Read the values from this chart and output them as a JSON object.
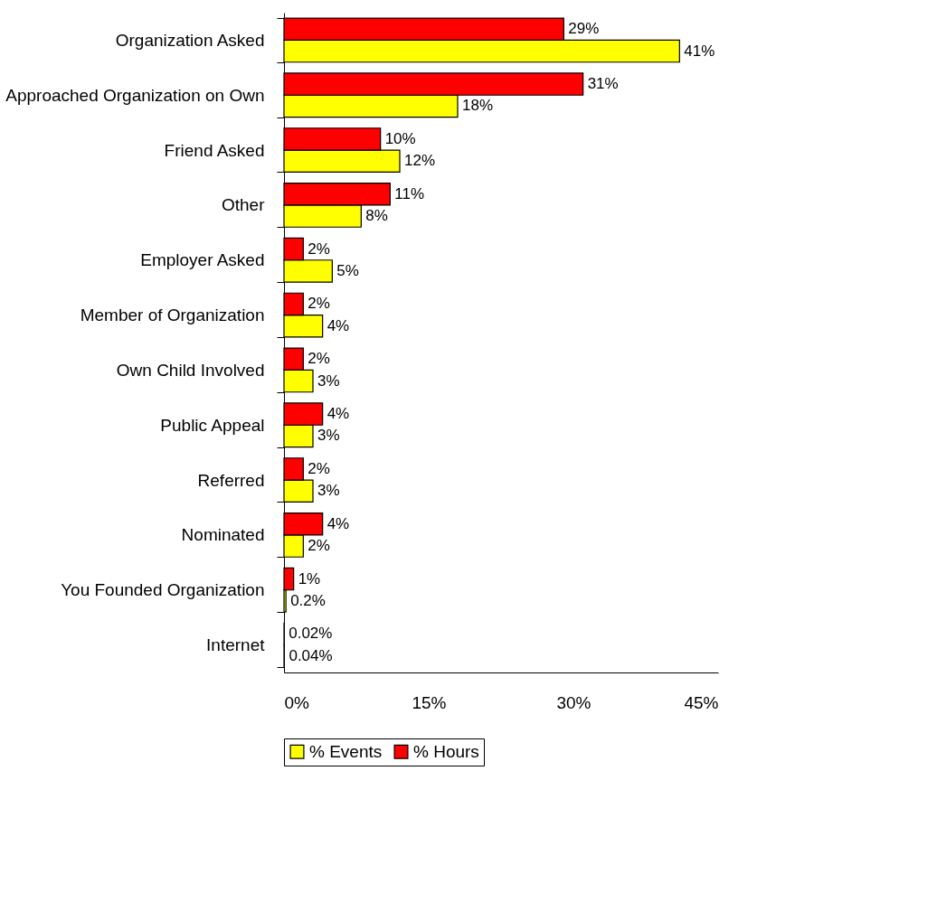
{
  "chart_data": {
    "type": "bar",
    "orientation": "horizontal",
    "categories": [
      "Organization Asked",
      "Approached Organization on Own",
      "Friend Asked",
      "Other",
      "Employer Asked",
      "Member of Organization",
      "Own Child Involved",
      "Public Appeal",
      "Referred",
      "Nominated",
      "You Founded Organization",
      "Internet"
    ],
    "series": [
      {
        "name": "% Events",
        "color": "#ffff00",
        "values": [
          41,
          18,
          12,
          8,
          5,
          4,
          3,
          3,
          3,
          2,
          0.2,
          0.04
        ],
        "value_labels": [
          "41%",
          "18%",
          "12%",
          "8%",
          "5%",
          "4%",
          "3%",
          "3%",
          "3%",
          "2%",
          "0.2%",
          "0.04%"
        ]
      },
      {
        "name": "% Hours",
        "color": "#ff0000",
        "values": [
          29,
          31,
          10,
          11,
          2,
          2,
          2,
          4,
          2,
          4,
          1,
          0.02
        ],
        "value_labels": [
          "29%",
          "31%",
          "10%",
          "11%",
          "2%",
          "2%",
          "2%",
          "4%",
          "2%",
          "4%",
          "1%",
          "0.02%"
        ]
      }
    ],
    "xlim": [
      0,
      45
    ],
    "xticks": [
      {
        "value": 0,
        "label": "0%"
      },
      {
        "value": 15,
        "label": "15%"
      },
      {
        "value": 30,
        "label": "30%"
      },
      {
        "value": 45,
        "label": "45%"
      }
    ],
    "grid": false,
    "legend": "bottom"
  }
}
